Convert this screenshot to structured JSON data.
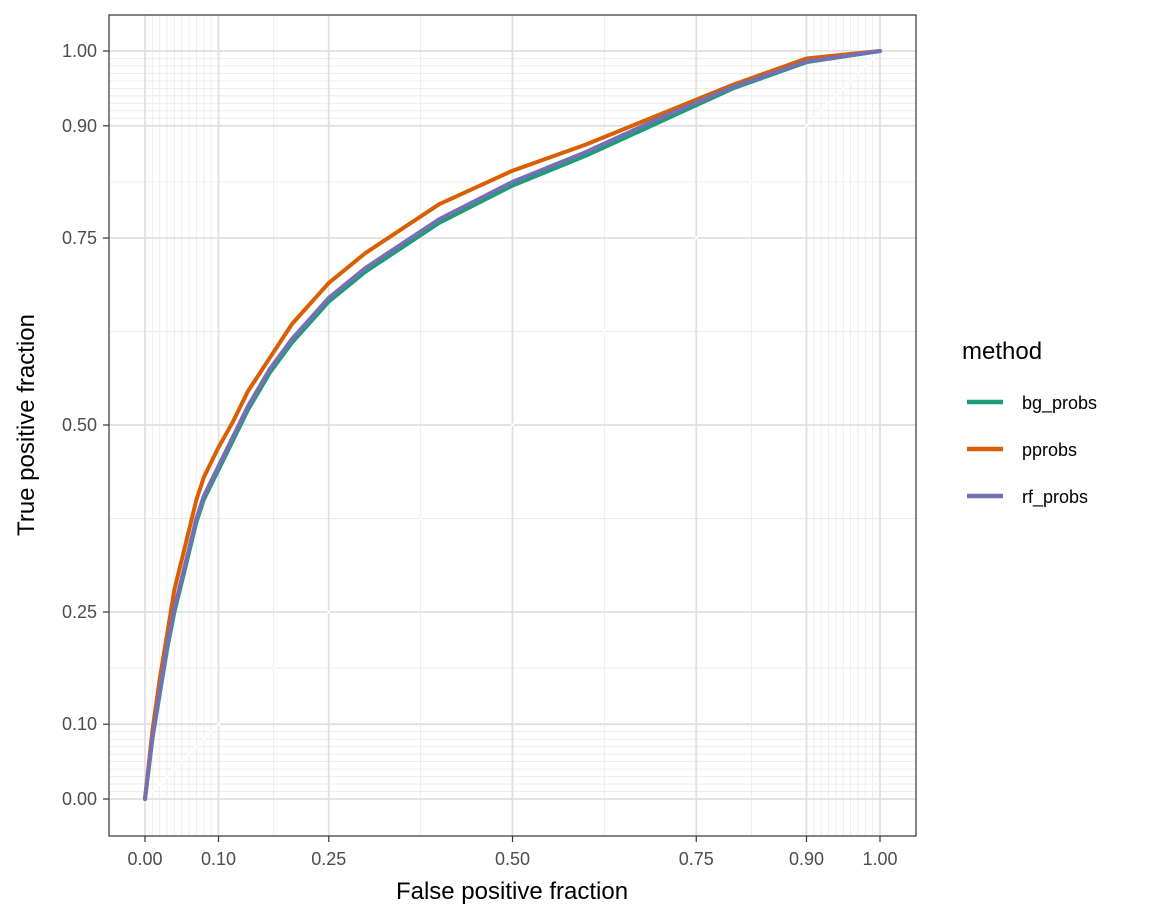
{
  "chart_data": {
    "type": "line",
    "title": "",
    "xlabel": "False positive fraction",
    "ylabel": "True positive fraction",
    "x_scale": "ticks at 0.00, 0.10, 0.25, 0.50, 0.75, 0.90, 1.00 with dense minor gridlines near 0 and 1",
    "xlim": [
      0,
      1
    ],
    "ylim": [
      0,
      1
    ],
    "x_ticks": [
      "0.00",
      "0.10",
      "0.25",
      "0.50",
      "0.75",
      "0.90",
      "1.00"
    ],
    "y_ticks": [
      "0.00",
      "0.10",
      "0.25",
      "0.50",
      "0.75",
      "0.90",
      "1.00"
    ],
    "grid": true,
    "reference_line": "diagonal y = x",
    "legend": {
      "title": "method",
      "placement": "right"
    },
    "colors": {
      "bg_probs": "#1b9e77",
      "pprobs": "#d95f02",
      "rf_probs": "#7570b3"
    },
    "x": [
      0,
      0.01,
      0.02,
      0.03,
      0.04,
      0.05,
      0.06,
      0.07,
      0.08,
      0.09,
      0.1,
      0.12,
      0.14,
      0.17,
      0.2,
      0.25,
      0.3,
      0.4,
      0.5,
      0.6,
      0.7,
      0.8,
      0.9,
      1.0
    ],
    "series": [
      {
        "name": "bg_probs",
        "values": [
          0,
          0.08,
          0.14,
          0.2,
          0.25,
          0.29,
          0.33,
          0.37,
          0.4,
          0.42,
          0.44,
          0.48,
          0.52,
          0.57,
          0.61,
          0.665,
          0.705,
          0.77,
          0.82,
          0.86,
          0.905,
          0.95,
          0.985,
          1.0
        ]
      },
      {
        "name": "pprobs",
        "values": [
          0,
          0.09,
          0.16,
          0.22,
          0.28,
          0.32,
          0.36,
          0.4,
          0.43,
          0.45,
          0.47,
          0.505,
          0.545,
          0.59,
          0.635,
          0.69,
          0.73,
          0.795,
          0.84,
          0.875,
          0.915,
          0.955,
          0.99,
          1.0
        ]
      },
      {
        "name": "rf_probs",
        "values": [
          0,
          0.08,
          0.145,
          0.205,
          0.255,
          0.295,
          0.335,
          0.375,
          0.405,
          0.425,
          0.445,
          0.485,
          0.525,
          0.575,
          0.615,
          0.67,
          0.71,
          0.775,
          0.825,
          0.865,
          0.91,
          0.952,
          0.986,
          1.0
        ]
      }
    ]
  }
}
